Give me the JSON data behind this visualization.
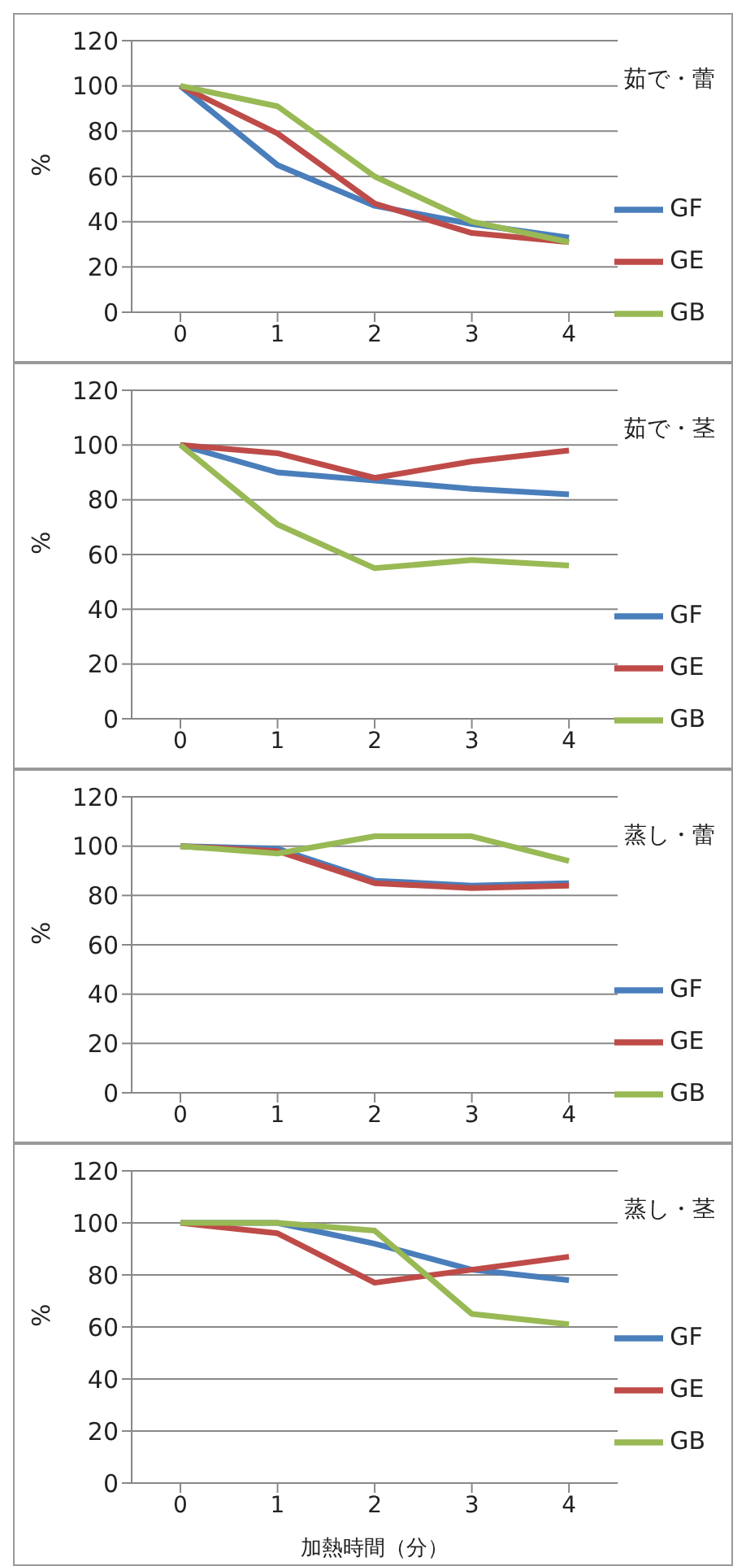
{
  "chart_data": [
    {
      "type": "line",
      "title": "茹で・蕾",
      "ylabel": "%",
      "categories": [
        "0",
        "1",
        "2",
        "3",
        "4"
      ],
      "ylim": [
        0,
        120
      ],
      "yticks": [
        0,
        20,
        40,
        60,
        80,
        100,
        120
      ],
      "grid": "y",
      "legend": "right",
      "series": [
        {
          "name": "GF",
          "color": "#4a7ebb",
          "values": [
            100,
            65,
            47,
            39,
            33
          ]
        },
        {
          "name": "GE",
          "color": "#be4b48",
          "values": [
            100,
            79,
            48,
            35,
            31
          ]
        },
        {
          "name": "GB",
          "color": "#98b954",
          "values": [
            100,
            91,
            60,
            40,
            31
          ]
        }
      ]
    },
    {
      "type": "line",
      "title": "茹で・茎",
      "ylabel": "%",
      "categories": [
        "0",
        "1",
        "2",
        "3",
        "4"
      ],
      "ylim": [
        0,
        120
      ],
      "yticks": [
        0,
        20,
        40,
        60,
        80,
        100,
        120
      ],
      "grid": "y",
      "legend": "right",
      "series": [
        {
          "name": "GF",
          "color": "#4a7ebb",
          "values": [
            100,
            90,
            87,
            84,
            82
          ]
        },
        {
          "name": "GE",
          "color": "#be4b48",
          "values": [
            100,
            97,
            88,
            94,
            98
          ]
        },
        {
          "name": "GB",
          "color": "#98b954",
          "values": [
            100,
            71,
            55,
            58,
            56
          ]
        }
      ]
    },
    {
      "type": "line",
      "title": "蒸し・蕾",
      "ylabel": "%",
      "categories": [
        "0",
        "1",
        "2",
        "3",
        "4"
      ],
      "ylim": [
        0,
        120
      ],
      "yticks": [
        0,
        20,
        40,
        60,
        80,
        100,
        120
      ],
      "grid": "y",
      "legend": "right",
      "series": [
        {
          "name": "GF",
          "color": "#4a7ebb",
          "values": [
            100,
            99,
            86,
            84,
            85
          ]
        },
        {
          "name": "GE",
          "color": "#be4b48",
          "values": [
            100,
            98,
            85,
            83,
            84
          ]
        },
        {
          "name": "GB",
          "color": "#98b954",
          "values": [
            100,
            97,
            104,
            104,
            94
          ]
        }
      ]
    },
    {
      "type": "line",
      "title": "蒸し・茎",
      "ylabel": "%",
      "xlabel": "加熱時間（分）",
      "categories": [
        "0",
        "1",
        "2",
        "3",
        "4"
      ],
      "ylim": [
        0,
        120
      ],
      "yticks": [
        0,
        20,
        40,
        60,
        80,
        100,
        120
      ],
      "grid": "y",
      "legend": "right",
      "series": [
        {
          "name": "GF",
          "color": "#4a7ebb",
          "values": [
            100,
            100,
            92,
            82,
            78
          ]
        },
        {
          "name": "GE",
          "color": "#be4b48",
          "values": [
            100,
            96,
            77,
            82,
            87
          ]
        },
        {
          "name": "GB",
          "color": "#98b954",
          "values": [
            100,
            100,
            97,
            65,
            61
          ]
        }
      ]
    }
  ]
}
